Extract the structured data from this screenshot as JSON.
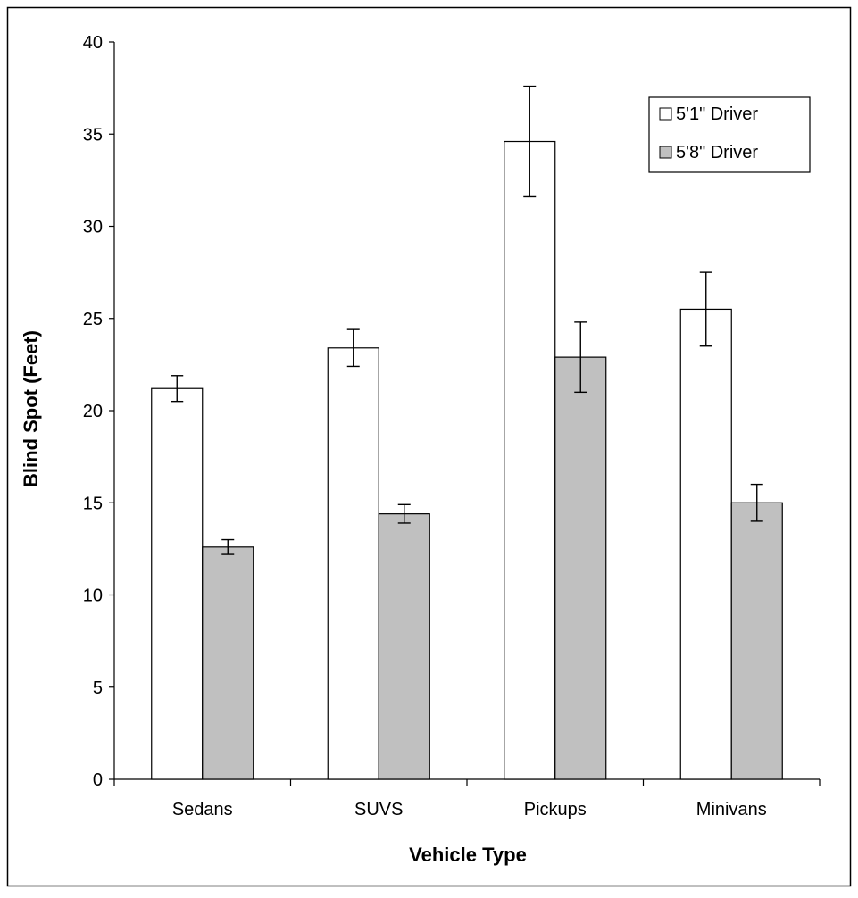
{
  "chart_data": {
    "type": "bar",
    "xlabel": "Vehicle Type",
    "ylabel": "Blind Spot (Feet)",
    "ylim": [
      0,
      40
    ],
    "yticks": [
      "0",
      "5",
      "10",
      "15",
      "20",
      "25",
      "30",
      "35",
      "40"
    ],
    "categories": [
      "Sedans",
      "SUVS",
      "Pickups",
      "Minivans"
    ],
    "series": [
      {
        "name": "5'1\" Driver",
        "values": [
          21.2,
          23.4,
          34.6,
          25.5
        ],
        "error": [
          0.7,
          1.0,
          3.0,
          2.0
        ],
        "color": "#ffffff"
      },
      {
        "name": "5'8\" Driver",
        "values": [
          12.6,
          14.4,
          22.9,
          15.0
        ],
        "error": [
          0.4,
          0.5,
          1.9,
          1.0
        ],
        "color": "#c0c0c0"
      }
    ],
    "legend_position": "top-right",
    "grid": false
  }
}
